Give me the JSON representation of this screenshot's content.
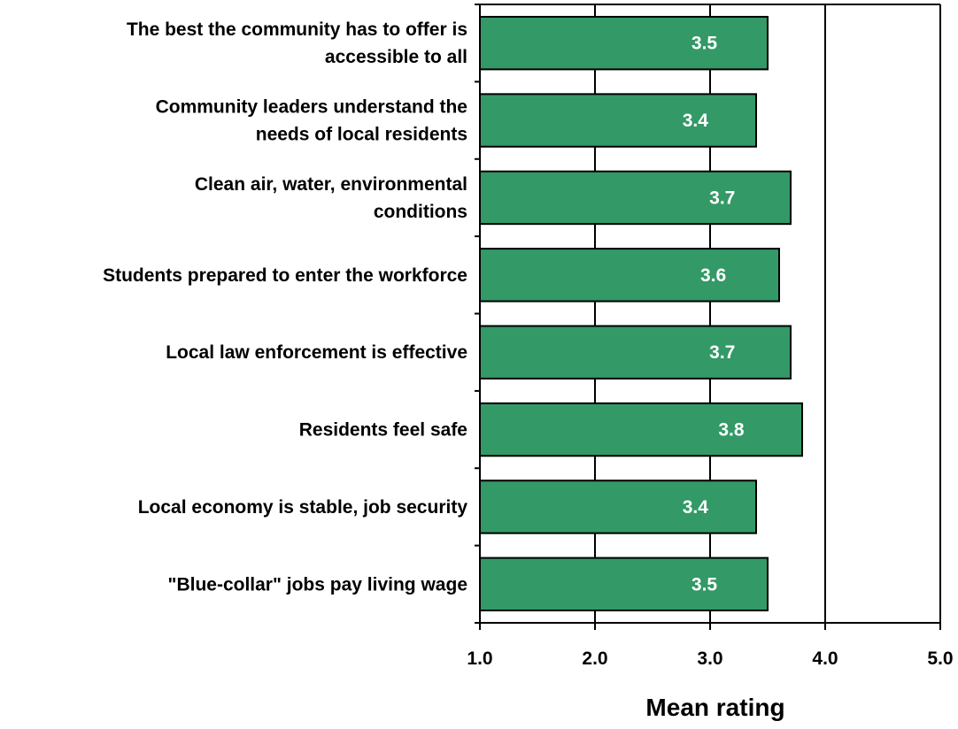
{
  "chart_data": {
    "type": "bar",
    "orientation": "horizontal",
    "categories": [
      [
        "The best the community has to offer is",
        "accessible to all"
      ],
      [
        "Community leaders understand the",
        "needs of local residents"
      ],
      [
        "Clean air, water, environmental",
        "conditions"
      ],
      [
        "Students prepared to enter the workforce"
      ],
      [
        "Local law enforcement is effective"
      ],
      [
        "Residents feel safe"
      ],
      [
        "Local economy is stable,  job security"
      ],
      [
        "\"Blue-collar\" jobs pay living wage"
      ]
    ],
    "values": [
      3.5,
      3.4,
      3.7,
      3.6,
      3.7,
      3.8,
      3.4,
      3.5
    ],
    "data_labels": [
      "3.5",
      "3.4",
      "3.7",
      "3.6",
      "3.7",
      "3.8",
      "3.4",
      "3.5"
    ],
    "xlabel": "Mean rating",
    "ylabel": "",
    "xlim": [
      1.0,
      5.0
    ],
    "xticks": [
      1.0,
      2.0,
      3.0,
      4.0,
      5.0
    ],
    "xtick_labels": [
      "1.0",
      "2.0",
      "3.0",
      "4.0",
      "5.0"
    ],
    "grid": "vertical",
    "legend": "none",
    "bar_color": "#339966",
    "bar_edge_color": "#000000"
  }
}
